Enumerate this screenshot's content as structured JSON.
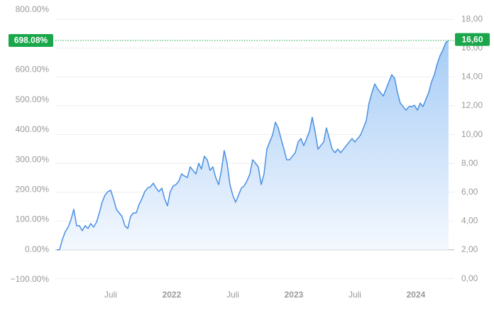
{
  "chart_data": {
    "type": "area",
    "xlim": [
      2021.047,
      2024.314
    ],
    "xticks": [
      {
        "value": 2021.5,
        "label": "Juli"
      },
      {
        "value": 2022,
        "label": "2022"
      },
      {
        "value": 2022.5,
        "label": "Juli"
      },
      {
        "value": 2023,
        "label": "2023"
      },
      {
        "value": 2023.5,
        "label": "Juli"
      },
      {
        "value": 2024,
        "label": "2024"
      }
    ],
    "ylim": [
      -100,
      800
    ],
    "yticks": [
      {
        "value": -100,
        "label": "−100.00%"
      },
      {
        "value": 0,
        "label": "0.00%"
      },
      {
        "value": 100,
        "label": "100.00%"
      },
      {
        "value": 200,
        "label": "200.00%"
      },
      {
        "value": 300,
        "label": "300.00%"
      },
      {
        "value": 400,
        "label": "400.00%"
      },
      {
        "value": 500,
        "label": "500.00%"
      },
      {
        "value": 600,
        "label": "600.00%"
      },
      {
        "value": 800,
        "label": "800.00%"
      }
    ],
    "y2lim": [
      -0.07,
      18.65
    ],
    "y2ticks": [
      {
        "value": 0,
        "label": "0,00"
      },
      {
        "value": 2,
        "label": "2,00"
      },
      {
        "value": 4,
        "label": "4,00"
      },
      {
        "value": 6,
        "label": "6,00"
      },
      {
        "value": 8,
        "label": "8,00"
      },
      {
        "value": 10,
        "label": "10,00"
      },
      {
        "value": 12,
        "label": "12,00"
      },
      {
        "value": 14,
        "label": "14,00"
      },
      {
        "value": 16,
        "label": "16,00"
      },
      {
        "value": 18,
        "label": "18,00"
      }
    ],
    "grid": true,
    "last_value": {
      "value": 698.08,
      "label": "698.08%"
    },
    "last_price": {
      "value": 16.6,
      "label": "16,60"
    },
    "badge_color": "#1aa64b",
    "x": [
      2021.058,
      2021.081,
      2021.105,
      2021.128,
      2021.151,
      2021.174,
      2021.198,
      2021.221,
      2021.244,
      2021.267,
      2021.291,
      2021.314,
      2021.337,
      2021.36,
      2021.384,
      2021.407,
      2021.43,
      2021.453,
      2021.477,
      2021.5,
      2021.523,
      2021.547,
      2021.57,
      2021.593,
      2021.616,
      2021.64,
      2021.663,
      2021.686,
      2021.709,
      2021.733,
      2021.756,
      2021.779,
      2021.802,
      2021.826,
      2021.849,
      2021.872,
      2021.895,
      2021.919,
      2021.942,
      2021.965,
      2021.988,
      2022.012,
      2022.035,
      2022.058,
      2022.081,
      2022.105,
      2022.128,
      2022.151,
      2022.174,
      2022.198,
      2022.221,
      2022.244,
      2022.267,
      2022.291,
      2022.314,
      2022.337,
      2022.36,
      2022.384,
      2022.407,
      2022.43,
      2022.453,
      2022.477,
      2022.5,
      2022.523,
      2022.547,
      2022.57,
      2022.593,
      2022.616,
      2022.64,
      2022.663,
      2022.686,
      2022.709,
      2022.733,
      2022.756,
      2022.779,
      2022.802,
      2022.826,
      2022.849,
      2022.872,
      2022.895,
      2022.919,
      2022.942,
      2022.965,
      2022.988,
      2023.012,
      2023.035,
      2023.058,
      2023.081,
      2023.105,
      2023.128,
      2023.151,
      2023.174,
      2023.198,
      2023.221,
      2023.244,
      2023.267,
      2023.291,
      2023.314,
      2023.337,
      2023.36,
      2023.384,
      2023.407,
      2023.43,
      2023.453,
      2023.477,
      2023.5,
      2023.523,
      2023.547,
      2023.57,
      2023.593,
      2023.616,
      2023.64,
      2023.663,
      2023.686,
      2023.709,
      2023.733,
      2023.756,
      2023.779,
      2023.802,
      2023.826,
      2023.849,
      2023.872,
      2023.895,
      2023.919,
      2023.942,
      2023.965,
      2023.988,
      2024.012,
      2024.035,
      2024.058,
      2024.081,
      2024.105,
      2024.128,
      2024.151,
      2024.174,
      2024.198,
      2024.221,
      2024.244,
      2024.267
    ],
    "series": [
      {
        "color": "#4a90e2",
        "values": [
          0,
          0,
          35,
          60,
          75,
          99,
          135,
          80,
          80.4,
          63.8,
          80.4,
          70.9,
          87.5,
          75.7,
          92.2,
          122.9,
          158.4,
          182,
          193.9,
          198.6,
          170.2,
          134.8,
          122.9,
          111.1,
          80.4,
          70.9,
          111.1,
          122.9,
          122.9,
          151.3,
          170.2,
          193.9,
          205.7,
          210.4,
          222.2,
          205.7,
          193.9,
          205.7,
          170.2,
          146.6,
          193.9,
          212.8,
          217.5,
          229.3,
          253,
          245.9,
          241.1,
          276.6,
          264.8,
          253,
          288.4,
          269.5,
          312.1,
          300.2,
          264.8,
          276.6,
          241.1,
          217.5,
          264.8,
          331,
          290,
          217.5,
          182,
          158.4,
          182,
          205.7,
          212.8,
          229.3,
          253,
          300.2,
          288.4,
          276.6,
          217.5,
          253,
          335.7,
          359.3,
          383,
          425.5,
          406.6,
          371.2,
          335.7,
          300.2,
          300.2,
          312.1,
          323.9,
          359.3,
          371.2,
          347.5,
          371.2,
          394.8,
          442.1,
          394.8,
          335.7,
          347.5,
          359.3,
          406.6,
          371.2,
          335.7,
          323.9,
          335.7,
          323.9,
          335.7,
          347.5,
          359.3,
          371.2,
          359.3,
          371.2,
          383,
          406.6,
          430.3,
          489.4,
          524.8,
          553.2,
          536.7,
          524.8,
          513,
          536.7,
          560.3,
          583.9,
          572.1,
          524.8,
          489.4,
          477.5,
          465.7,
          477.5,
          477.5,
          482.3,
          465.7,
          489.4,
          477.5,
          501.2,
          524.8,
          560.3,
          583.9,
          619.4,
          647.8,
          666.7,
          690.3,
          698.08
        ]
      }
    ]
  }
}
